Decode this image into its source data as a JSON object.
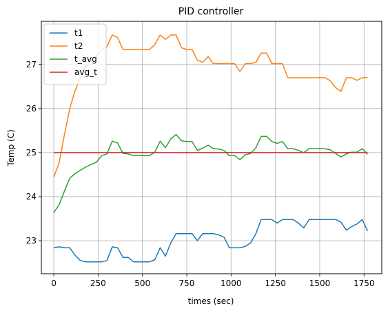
{
  "chart_data": {
    "type": "line",
    "title": "PID controller",
    "xlabel": "times (sec)",
    "ylabel": "Temp (C)",
    "xlim": [
      -70,
      1850
    ],
    "ylim": [
      22.25,
      27.98
    ],
    "xticks": [
      0,
      250,
      500,
      750,
      1000,
      1250,
      1500,
      1750
    ],
    "xtick_labels": [
      "0",
      "250",
      "500",
      "750",
      "1000",
      "1250",
      "1500",
      "1750"
    ],
    "yticks": [
      23,
      24,
      25,
      26,
      27
    ],
    "ytick_labels": [
      "23",
      "24",
      "25",
      "26",
      "27"
    ],
    "grid": true,
    "legend_position": "upper-left",
    "x": [
      0,
      30,
      60,
      90,
      120,
      150,
      180,
      210,
      240,
      270,
      300,
      330,
      360,
      390,
      420,
      450,
      480,
      510,
      540,
      570,
      600,
      630,
      660,
      690,
      720,
      750,
      780,
      810,
      840,
      870,
      900,
      930,
      960,
      990,
      1020,
      1050,
      1080,
      1110,
      1140,
      1170,
      1200,
      1230,
      1260,
      1290,
      1320,
      1350,
      1380,
      1410,
      1440,
      1470,
      1500,
      1530,
      1560,
      1590,
      1620,
      1650,
      1680,
      1710,
      1740,
      1770
    ],
    "series": [
      {
        "name": "t1",
        "color": "#1f77b4",
        "values": [
          22.84,
          22.86,
          22.84,
          22.84,
          22.67,
          22.55,
          22.52,
          22.52,
          22.52,
          22.52,
          22.55,
          22.86,
          22.84,
          22.62,
          22.62,
          22.52,
          22.52,
          22.52,
          22.52,
          22.57,
          22.84,
          22.65,
          22.95,
          23.16,
          23.16,
          23.16,
          23.16,
          23.0,
          23.16,
          23.16,
          23.16,
          23.13,
          23.08,
          22.84,
          22.84,
          22.84,
          22.87,
          22.95,
          23.16,
          23.48,
          23.48,
          23.48,
          23.4,
          23.48,
          23.48,
          23.48,
          23.4,
          23.29,
          23.48,
          23.48,
          23.48,
          23.48,
          23.48,
          23.48,
          23.42,
          23.24,
          23.32,
          23.38,
          23.48,
          23.22
        ]
      },
      {
        "name": "t2",
        "color": "#ff7f0e",
        "values": [
          24.44,
          24.76,
          25.4,
          26.0,
          26.4,
          26.7,
          26.95,
          27.1,
          27.2,
          27.33,
          27.4,
          27.67,
          27.61,
          27.34,
          27.34,
          27.34,
          27.34,
          27.34,
          27.34,
          27.45,
          27.67,
          27.57,
          27.67,
          27.67,
          27.38,
          27.34,
          27.34,
          27.1,
          27.05,
          27.18,
          27.02,
          27.02,
          27.02,
          27.02,
          27.02,
          26.84,
          27.02,
          27.02,
          27.05,
          27.26,
          27.26,
          27.02,
          27.02,
          27.02,
          26.7,
          26.7,
          26.7,
          26.7,
          26.7,
          26.7,
          26.7,
          26.7,
          26.63,
          26.47,
          26.39,
          26.7,
          26.7,
          26.64,
          26.7,
          26.7
        ]
      },
      {
        "name": "t_avg",
        "color": "#2ca02c",
        "values": [
          23.64,
          23.81,
          24.12,
          24.42,
          24.52,
          24.6,
          24.67,
          24.73,
          24.78,
          24.93,
          24.97,
          25.26,
          25.22,
          24.98,
          24.97,
          24.93,
          24.93,
          24.93,
          24.93,
          25.01,
          25.26,
          25.11,
          25.31,
          25.41,
          25.27,
          25.25,
          25.25,
          25.05,
          25.1,
          25.17,
          25.09,
          25.08,
          25.05,
          24.93,
          24.93,
          24.84,
          24.95,
          24.98,
          25.11,
          25.37,
          25.37,
          25.25,
          25.21,
          25.25,
          25.09,
          25.09,
          25.05,
          25.0,
          25.09,
          25.09,
          25.09,
          25.09,
          25.06,
          24.98,
          24.9,
          24.97,
          25.01,
          25.01,
          25.09,
          24.96
        ]
      },
      {
        "name": "avg_t",
        "color": "#d62728",
        "values": [
          25.0,
          25.0,
          25.0,
          25.0,
          25.0,
          25.0,
          25.0,
          25.0,
          25.0,
          25.0,
          25.0,
          25.0,
          25.0,
          25.0,
          25.0,
          25.0,
          25.0,
          25.0,
          25.0,
          25.0,
          25.0,
          25.0,
          25.0,
          25.0,
          25.0,
          25.0,
          25.0,
          25.0,
          25.0,
          25.0,
          25.0,
          25.0,
          25.0,
          25.0,
          25.0,
          25.0,
          25.0,
          25.0,
          25.0,
          25.0,
          25.0,
          25.0,
          25.0,
          25.0,
          25.0,
          25.0,
          25.0,
          25.0,
          25.0,
          25.0,
          25.0,
          25.0,
          25.0,
          25.0,
          25.0,
          25.0,
          25.0,
          25.0,
          25.0,
          25.0
        ]
      }
    ]
  }
}
